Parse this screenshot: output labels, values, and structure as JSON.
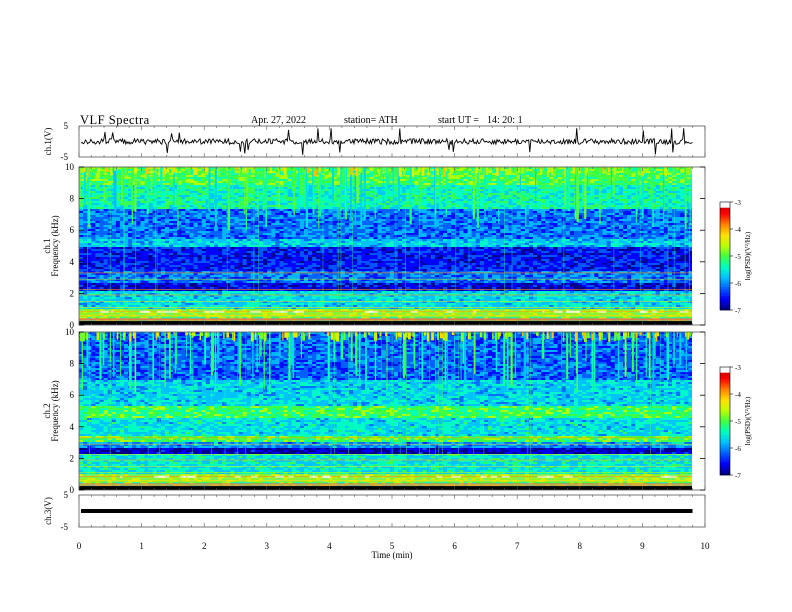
{
  "header": {
    "title": "VLF  Spectra",
    "date": "Apr. 27, 2022",
    "station": "station= ATH",
    "start_label": "start  UT  =",
    "start_time": "14: 20: 1"
  },
  "chart_data": [
    {
      "type": "line",
      "id": "ch1-waveform",
      "ylabel": "ch.1(V)",
      "ylim": [
        -5,
        5
      ],
      "yticks": [
        "5",
        "-5"
      ],
      "xlim": [
        0,
        9.8
      ],
      "description_values": {
        "baseline": 0,
        "noise_amplitude": 0.9,
        "spike_max": 3.5
      }
    },
    {
      "type": "heatmap",
      "id": "ch1-spectrogram",
      "ylabel": "Frequency  (kHz)",
      "channel_label": "ch.1",
      "ylim": [
        0,
        10
      ],
      "yticks": [
        "0",
        "2",
        "4",
        "6",
        "8",
        "10"
      ],
      "xlim": [
        0,
        9.8
      ],
      "colorbar": {
        "label": "log(PSD)(V²/Hz)",
        "range": [
          -7,
          -3
        ],
        "ticks": [
          "-3",
          "-4",
          "-5",
          "-6",
          "-7"
        ]
      }
    },
    {
      "type": "heatmap",
      "id": "ch2-spectrogram",
      "ylabel": "Frequency  (kHz)",
      "channel_label": "ch.2",
      "ylim": [
        0,
        10
      ],
      "yticks": [
        "0",
        "2",
        "4",
        "6",
        "8",
        "10"
      ],
      "xlim": [
        0,
        9.8
      ],
      "colorbar": {
        "label": "log(PSD)(V²/Hz)",
        "range": [
          -7,
          -3
        ],
        "ticks": [
          "-3",
          "-4",
          "-5",
          "-6",
          "-7"
        ]
      }
    },
    {
      "type": "line",
      "id": "ch3-waveform",
      "ylabel": "ch.3(V)",
      "ylim": [
        -5,
        5
      ],
      "yticks": [
        "5",
        "-5"
      ],
      "xlim": [
        0,
        9.8
      ],
      "description_values": {
        "baseline": 0
      }
    }
  ],
  "x_axis": {
    "label": "Time  (min)",
    "range": [
      0,
      10
    ],
    "ticks": [
      "0",
      "1",
      "2",
      "3",
      "4",
      "5",
      "6",
      "7",
      "8",
      "9",
      "10"
    ]
  },
  "colors": {
    "colormap": [
      "#000080",
      "#0000ff",
      "#0060ff",
      "#00c0ff",
      "#00ffc0",
      "#40ff40",
      "#c0ff00",
      "#ffe000",
      "#ff8000",
      "#ff0000",
      "#c00000",
      "#ffffff"
    ]
  }
}
